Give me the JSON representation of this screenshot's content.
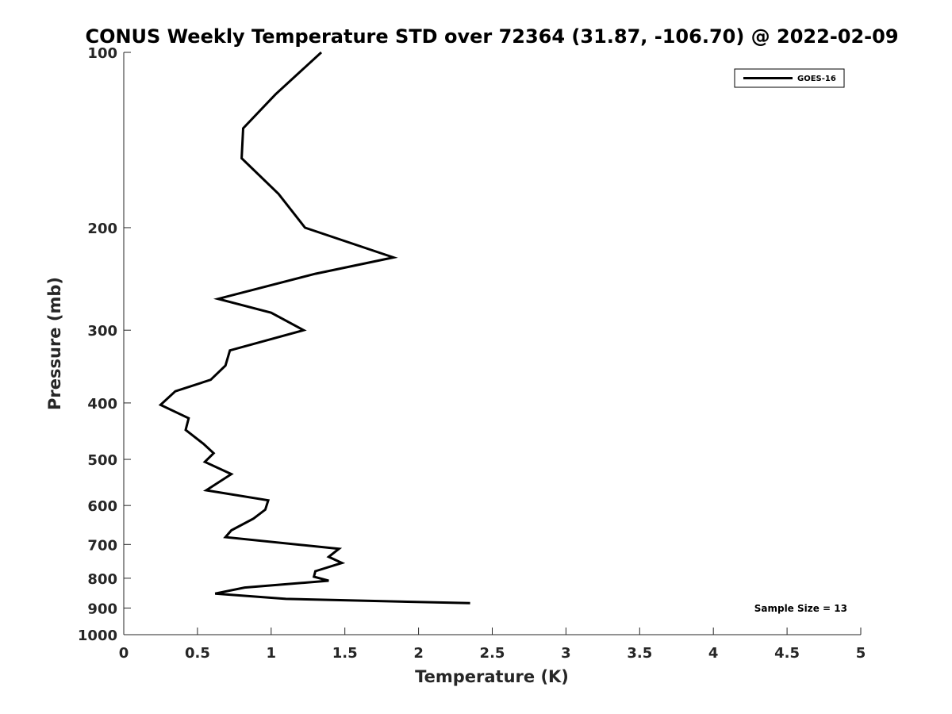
{
  "chart_data": {
    "type": "line",
    "title": "CONUS Weekly Temperature STD over 72364 (31.87, -106.70) @ 2022-02-09",
    "xlabel": "Temperature (K)",
    "ylabel": "Pressure (mb)",
    "xlim": [
      0,
      5
    ],
    "ylim": [
      100,
      1000
    ],
    "y_scale": "log",
    "y_reversed": true,
    "xticks": [
      0,
      0.5,
      1,
      1.5,
      2,
      2.5,
      3,
      3.5,
      4,
      4.5,
      5
    ],
    "xtick_labels": [
      "0",
      "0.5",
      "1",
      "1.5",
      "2",
      "2.5",
      "3",
      "3.5",
      "4",
      "4.5",
      "5"
    ],
    "yticks": [
      100,
      200,
      300,
      400,
      500,
      600,
      700,
      800,
      900,
      1000
    ],
    "ytick_labels": [
      "100",
      "200",
      "300",
      "400",
      "500",
      "600",
      "700",
      "800",
      "900",
      "1000"
    ],
    "grid": false,
    "legend_position": "top-right",
    "annotation": "Sample Size = 13",
    "series": [
      {
        "name": "GOES-16",
        "color": "#000000",
        "points": [
          {
            "x": 1.34,
            "y": 100
          },
          {
            "x": 1.03,
            "y": 118
          },
          {
            "x": 0.81,
            "y": 135
          },
          {
            "x": 0.8,
            "y": 152
          },
          {
            "x": 1.05,
            "y": 175
          },
          {
            "x": 1.23,
            "y": 200
          },
          {
            "x": 1.83,
            "y": 225
          },
          {
            "x": 1.3,
            "y": 240
          },
          {
            "x": 0.64,
            "y": 265
          },
          {
            "x": 1.0,
            "y": 280
          },
          {
            "x": 1.22,
            "y": 300
          },
          {
            "x": 0.72,
            "y": 325
          },
          {
            "x": 0.69,
            "y": 345
          },
          {
            "x": 0.59,
            "y": 365
          },
          {
            "x": 0.35,
            "y": 382
          },
          {
            "x": 0.25,
            "y": 403
          },
          {
            "x": 0.44,
            "y": 425
          },
          {
            "x": 0.42,
            "y": 445
          },
          {
            "x": 0.54,
            "y": 470
          },
          {
            "x": 0.61,
            "y": 488
          },
          {
            "x": 0.55,
            "y": 505
          },
          {
            "x": 0.73,
            "y": 530
          },
          {
            "x": 0.56,
            "y": 565
          },
          {
            "x": 0.98,
            "y": 588
          },
          {
            "x": 0.96,
            "y": 610
          },
          {
            "x": 0.88,
            "y": 632
          },
          {
            "x": 0.73,
            "y": 662
          },
          {
            "x": 0.69,
            "y": 680
          },
          {
            "x": 1.46,
            "y": 712
          },
          {
            "x": 1.39,
            "y": 735
          },
          {
            "x": 1.48,
            "y": 753
          },
          {
            "x": 1.3,
            "y": 778
          },
          {
            "x": 1.29,
            "y": 795
          },
          {
            "x": 1.39,
            "y": 808
          },
          {
            "x": 0.82,
            "y": 830
          },
          {
            "x": 0.62,
            "y": 850
          },
          {
            "x": 1.1,
            "y": 868
          },
          {
            "x": 2.35,
            "y": 883
          }
        ]
      }
    ]
  }
}
